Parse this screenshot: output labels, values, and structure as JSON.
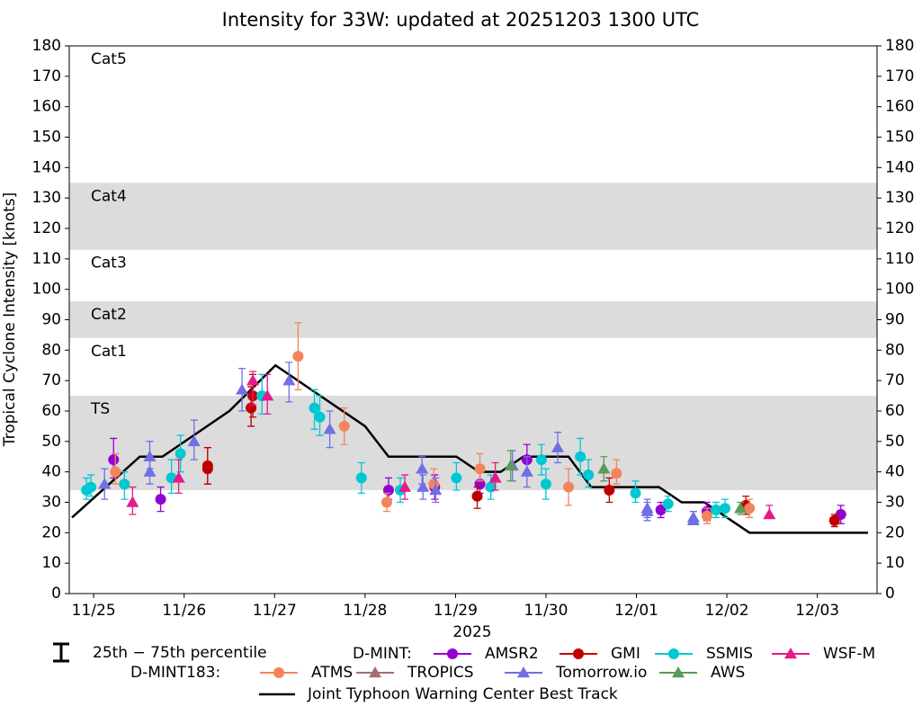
{
  "chart_data": {
    "type": "scatter",
    "title": "Intensity for 33W: updated at 20251203 1300 UTC",
    "y_label": "Tropical Cyclone Intensity [knots]",
    "x_label": "2025",
    "xlim": [
      24.73,
      33.66
    ],
    "xticks": [
      {
        "value": 25,
        "label": "11/25"
      },
      {
        "value": 26,
        "label": "11/26"
      },
      {
        "value": 27,
        "label": "11/27"
      },
      {
        "value": 28,
        "label": "11/28"
      },
      {
        "value": 29,
        "label": "11/29"
      },
      {
        "value": 30,
        "label": "11/30"
      },
      {
        "value": 31,
        "label": "12/01"
      },
      {
        "value": 32,
        "label": "12/02"
      },
      {
        "value": 33,
        "label": "12/03"
      }
    ],
    "ylim": [
      0,
      180
    ],
    "yticks": [
      0,
      10,
      20,
      30,
      40,
      50,
      60,
      70,
      80,
      90,
      100,
      110,
      120,
      130,
      140,
      150,
      160,
      170,
      180
    ],
    "bands": [
      {
        "label": "TS",
        "lower": 34,
        "upper": 65,
        "shaded": true
      },
      {
        "label": "Cat1",
        "lower": 65,
        "upper": 84,
        "shaded": false
      },
      {
        "label": "Cat2",
        "lower": 84,
        "upper": 96,
        "shaded": true
      },
      {
        "label": "Cat3",
        "lower": 96,
        "upper": 113,
        "shaded": false
      },
      {
        "label": "Cat4",
        "lower": 113,
        "upper": 135,
        "shaded": true
      },
      {
        "label": "Cat5",
        "lower": 135,
        "upper": 180,
        "shaded": false
      }
    ],
    "percentile_label": "25th − 75th percentile",
    "legend_groups": [
      "D-MINT:",
      "D-MINT183:"
    ],
    "series": [
      {
        "name": "AMSR2",
        "group": 0,
        "marker": "circle",
        "color": "#9400d3",
        "x": [
          25.22,
          25.74,
          28.26,
          28.77,
          29.27,
          29.79,
          31.27,
          31.78,
          33.26
        ],
        "values": [
          44,
          31,
          34,
          35,
          36,
          44,
          27.5,
          27,
          26
        ],
        "lower": [
          38,
          27,
          31,
          31,
          33,
          39,
          25,
          24,
          23
        ],
        "upper": [
          51,
          35,
          38,
          39,
          40,
          49,
          30,
          30,
          29
        ]
      },
      {
        "name": "GMI",
        "group": 0,
        "marker": "circle",
        "color": "#c00000",
        "x": [
          26.26,
          26.26,
          26.74,
          26.76,
          29.24,
          30.7,
          32.21,
          33.19
        ],
        "values": [
          42,
          41,
          61,
          65,
          32,
          34,
          29,
          24
        ],
        "lower": [
          36,
          36,
          55,
          58,
          28,
          30,
          26,
          22
        ],
        "upper": [
          48,
          48,
          68,
          72,
          35,
          38,
          32,
          26
        ]
      },
      {
        "name": "SSMIS",
        "group": 0,
        "marker": "circle",
        "color": "#00c8d2",
        "x": [
          24.92,
          24.97,
          25.34,
          25.86,
          25.96,
          26.86,
          27.44,
          27.5,
          27.96,
          28.39,
          29.01,
          29.39,
          29.95,
          30.0,
          30.38,
          30.47,
          30.99,
          31.35,
          31.88,
          31.98
        ],
        "values": [
          34,
          35,
          36,
          38,
          46,
          65,
          61,
          58,
          38,
          34,
          38,
          35,
          44,
          36,
          45,
          39,
          33,
          29.5,
          27.5,
          28
        ],
        "lower": [
          31,
          32,
          31,
          33,
          40,
          59,
          54,
          52,
          33,
          30,
          34,
          31,
          39,
          31,
          39,
          35,
          30,
          27,
          25,
          25
        ],
        "upper": [
          38,
          39,
          40,
          44,
          52,
          72,
          67,
          65,
          43,
          38,
          43,
          39,
          49,
          41,
          51,
          44,
          37,
          32,
          30,
          31
        ]
      },
      {
        "name": "WSF-M",
        "group": 0,
        "marker": "triangle",
        "color": "#e6198a",
        "x": [
          25.43,
          25.94,
          26.76,
          26.92,
          28.44,
          29.44,
          32.47
        ],
        "values": [
          30,
          38,
          70,
          65,
          35,
          38,
          26
        ],
        "lower": [
          26,
          33,
          62,
          59,
          31,
          34,
          25
        ],
        "upper": [
          35,
          44,
          73,
          72,
          39,
          43,
          29
        ]
      },
      {
        "name": "ATMS",
        "group": 1,
        "marker": "circle",
        "color": "#f4845a",
        "x": [
          25.24,
          27.26,
          27.77,
          28.24,
          28.76,
          29.27,
          30.25,
          30.78,
          31.78,
          32.25
        ],
        "values": [
          40,
          78,
          55,
          30,
          36,
          41,
          35,
          39.5,
          25.5,
          28
        ],
        "lower": [
          36,
          67,
          49,
          27,
          33,
          37,
          29,
          36,
          23,
          25
        ],
        "upper": [
          46,
          89,
          61,
          33,
          41,
          46,
          41,
          44,
          28,
          31
        ]
      },
      {
        "name": "TROPICS",
        "group": 1,
        "marker": "triangle",
        "color": "#a0706e",
        "x": [],
        "values": [],
        "lower": [],
        "upper": []
      },
      {
        "name": "Tomorrow.io",
        "group": 1,
        "marker": "triangle",
        "color": "#6f6fe6",
        "x": [
          25.12,
          25.62,
          25.62,
          26.11,
          26.64,
          27.16,
          27.61,
          28.63,
          28.64,
          28.78,
          29.63,
          29.79,
          30.13,
          31.12,
          31.12,
          31.63,
          31.63
        ],
        "values": [
          36,
          45,
          40,
          50,
          67,
          70,
          54,
          41,
          35,
          34,
          42,
          40,
          48,
          28,
          27,
          24,
          25
        ],
        "lower": [
          31,
          41,
          36,
          44,
          60,
          63,
          48,
          36,
          31,
          30,
          37,
          35,
          43,
          25,
          24,
          23,
          23
        ],
        "upper": [
          41,
          50,
          45,
          57,
          74,
          76,
          60,
          45,
          39,
          38,
          47,
          45,
          53,
          31,
          30,
          27,
          27
        ]
      },
      {
        "name": "AWS",
        "group": 1,
        "marker": "triangle",
        "color": "#5a9a5a",
        "x": [
          29.61,
          30.64,
          32.15
        ],
        "values": [
          42,
          41,
          28
        ],
        "lower": [
          37,
          37,
          26
        ],
        "upper": [
          47,
          45,
          30
        ]
      }
    ],
    "best_track": {
      "name": "Joint Typhoon Warning Center Best Track",
      "color": "#000000",
      "x": [
        24.76,
        25.51,
        25.76,
        26.5,
        27.01,
        28.0,
        28.26,
        29.01,
        29.26,
        29.5,
        29.75,
        30.25,
        30.5,
        31.25,
        31.5,
        31.75,
        32.25,
        33.56
      ],
      "values": [
        25,
        45,
        45,
        60,
        75,
        55,
        45,
        45,
        40,
        40,
        45,
        45,
        35,
        35,
        30,
        30,
        20,
        20
      ]
    }
  }
}
